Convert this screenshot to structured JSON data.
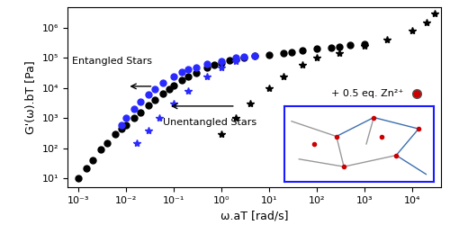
{
  "chart_data": {
    "type": "scatter",
    "x_label": "ω.aT [rad/s]",
    "y_label": "G'(ω).bT [Pa]",
    "log": true,
    "grid": false,
    "xlim": [
      0.0006,
      40000
    ],
    "ylim": [
      5,
      5000000
    ],
    "xticks": [
      {
        "value": 0.001,
        "label": "10⁻³"
      },
      {
        "value": 0.01,
        "label": "10⁻²"
      },
      {
        "value": 0.1,
        "label": "10⁻¹"
      },
      {
        "value": 1,
        "label": "10⁰"
      },
      {
        "value": 10,
        "label": "10¹"
      },
      {
        "value": 100,
        "label": "10²"
      },
      {
        "value": 1000,
        "label": "10³"
      },
      {
        "value": 10000,
        "label": "10⁴"
      }
    ],
    "yticks": [
      {
        "value": 10,
        "label": "10¹"
      },
      {
        "value": 100,
        "label": "10²"
      },
      {
        "value": 1000,
        "label": "10³"
      },
      {
        "value": 10000,
        "label": "10⁴"
      },
      {
        "value": 100000,
        "label": "10⁵"
      },
      {
        "value": 1000000,
        "label": "10⁶"
      }
    ],
    "annotations": [
      "Entangled Stars",
      "Unentangled Stars",
      "+ 0.5 eq. Zn²⁺"
    ],
    "series": [
      {
        "color": "#000000",
        "marker": "o",
        "x": [
          0.001,
          0.0015,
          0.002,
          0.003,
          0.004,
          0.006,
          0.008,
          0.01,
          0.015,
          0.02,
          0.03,
          0.04,
          0.06,
          0.08,
          0.1,
          0.15,
          0.2,
          0.3,
          0.5,
          0.7,
          1,
          1.5,
          2,
          3,
          5,
          10,
          20,
          30,
          50,
          100,
          200,
          300,
          500,
          1000
        ],
        "values": [
          10,
          22,
          40,
          90,
          150,
          300,
          450,
          600,
          1000,
          1500,
          2700,
          4000,
          6500,
          9000,
          12000,
          18000,
          25000,
          33000,
          50000,
          60000,
          70000,
          85000,
          92000,
          100000,
          115000,
          130000,
          150000,
          160000,
          175000,
          200000,
          220000,
          240000,
          265000,
          300000
        ]
      },
      {
        "color": "#2a2aff",
        "marker": "o",
        "x": [
          0.008,
          0.01,
          0.015,
          0.02,
          0.03,
          0.04,
          0.06,
          0.1,
          0.15,
          0.2,
          0.3,
          0.5,
          1,
          2,
          3,
          5
        ],
        "values": [
          600,
          1000,
          2000,
          3500,
          6000,
          9000,
          15000,
          25000,
          35000,
          42000,
          50000,
          65000,
          80000,
          100000,
          110000,
          120000
        ]
      },
      {
        "color": "#2a2aff",
        "marker": "*",
        "x": [
          0.017,
          0.03,
          0.05,
          0.1,
          0.2,
          0.5,
          1,
          2
        ],
        "values": [
          150,
          400,
          1000,
          3000,
          8000,
          25000,
          50000,
          80000
        ]
      },
      {
        "color": "#000000",
        "marker": "*",
        "x": [
          1,
          2,
          4,
          10,
          20,
          50,
          100,
          300,
          1000,
          3000,
          10000,
          20000,
          30000
        ],
        "values": [
          300,
          1000,
          3000,
          10000,
          25000,
          60000,
          100000,
          150000,
          250000,
          400000,
          800000,
          1500000,
          3000000
        ]
      }
    ]
  }
}
